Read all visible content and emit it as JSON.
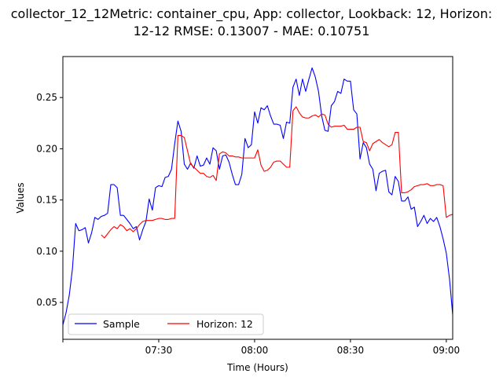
{
  "chart_data": {
    "type": "line",
    "title_line1": "collector_12_12Metric: container_cpu, App: collector, Lookback: 12, Horizon:",
    "title_line2": "12-12 RMSE: 0.13007 - MAE: 0.10751",
    "xlabel": "Time (Hours)",
    "ylabel": "Values",
    "x_ticks": [
      "",
      "07:30",
      "08:00",
      "08:30",
      "09:00"
    ],
    "y_ticks": [
      "0.05",
      "0.10",
      "0.15",
      "0.20",
      "0.25"
    ],
    "x_range_minutes_from_0700": [
      0,
      122
    ],
    "ylim": [
      0.014,
      0.29
    ],
    "grid": false,
    "legend_position": "lower-left",
    "series": [
      {
        "name": "Sample",
        "color": "#0000ff",
        "x_minutes_from_0700": [
          0,
          1,
          2,
          3,
          4,
          5,
          6,
          7,
          8,
          9,
          10,
          11,
          12,
          13,
          14,
          15,
          16,
          17,
          18,
          19,
          20,
          21,
          22,
          23,
          24,
          25,
          26,
          27,
          28,
          29,
          30,
          31,
          32,
          33,
          34,
          35,
          36,
          37,
          38,
          39,
          40,
          41,
          42,
          43,
          44,
          45,
          46,
          47,
          48,
          49,
          50,
          51,
          52,
          53,
          54,
          55,
          56,
          57,
          58,
          59,
          60,
          61,
          62,
          63,
          64,
          65,
          66,
          67,
          68,
          69,
          70,
          71,
          72,
          73,
          74,
          75,
          76,
          77,
          78,
          79,
          80,
          81,
          82,
          83,
          84,
          85,
          86,
          87,
          88,
          89,
          90,
          91,
          92,
          93,
          94,
          95,
          96,
          97,
          98,
          99,
          100,
          101,
          102,
          103,
          104,
          105,
          106,
          107,
          108,
          109,
          110,
          111,
          112,
          113,
          114,
          115,
          116,
          117,
          118,
          119,
          120,
          121,
          122
        ],
        "values": [
          0.028,
          0.04,
          0.057,
          0.083,
          0.127,
          0.12,
          0.121,
          0.123,
          0.108,
          0.118,
          0.133,
          0.131,
          0.134,
          0.135,
          0.137,
          0.165,
          0.165,
          0.162,
          0.135,
          0.135,
          0.131,
          0.127,
          0.122,
          0.124,
          0.111,
          0.121,
          0.129,
          0.151,
          0.14,
          0.162,
          0.164,
          0.163,
          0.172,
          0.173,
          0.18,
          0.205,
          0.227,
          0.217,
          0.185,
          0.18,
          0.186,
          0.181,
          0.193,
          0.183,
          0.184,
          0.191,
          0.185,
          0.201,
          0.198,
          0.18,
          0.193,
          0.194,
          0.187,
          0.175,
          0.165,
          0.165,
          0.175,
          0.21,
          0.201,
          0.204,
          0.236,
          0.225,
          0.24,
          0.238,
          0.242,
          0.232,
          0.224,
          0.224,
          0.223,
          0.21,
          0.226,
          0.225,
          0.26,
          0.268,
          0.252,
          0.268,
          0.256,
          0.268,
          0.279,
          0.27,
          0.256,
          0.232,
          0.218,
          0.217,
          0.242,
          0.246,
          0.256,
          0.254,
          0.268,
          0.266,
          0.266,
          0.238,
          0.234,
          0.19,
          0.206,
          0.201,
          0.185,
          0.18,
          0.159,
          0.176,
          0.178,
          0.179,
          0.158,
          0.155,
          0.173,
          0.168,
          0.149,
          0.149,
          0.153,
          0.141,
          0.143,
          0.124,
          0.129,
          0.135,
          0.127,
          0.132,
          0.129,
          0.133,
          0.124,
          0.112,
          0.098,
          0.073,
          0.038
        ]
      },
      {
        "name": "Horizon: 12",
        "color": "#ff0000",
        "x_minutes_from_0700": [
          12,
          13,
          14,
          15,
          16,
          17,
          18,
          19,
          20,
          21,
          22,
          23,
          24,
          25,
          26,
          27,
          28,
          29,
          30,
          31,
          32,
          33,
          34,
          35,
          36,
          37,
          38,
          39,
          40,
          41,
          42,
          43,
          44,
          45,
          46,
          47,
          48,
          49,
          50,
          51,
          52,
          53,
          54,
          55,
          56,
          57,
          58,
          59,
          60,
          61,
          62,
          63,
          64,
          65,
          66,
          67,
          68,
          69,
          70,
          71,
          72,
          73,
          74,
          75,
          76,
          77,
          78,
          79,
          80,
          81,
          82,
          83,
          84,
          85,
          86,
          87,
          88,
          89,
          90,
          91,
          92,
          93,
          94,
          95,
          96,
          97,
          98,
          99,
          100,
          101,
          102,
          103,
          104,
          105,
          106,
          107,
          108,
          109,
          110,
          111,
          112,
          113,
          114,
          115,
          116,
          117,
          118,
          119,
          120,
          121,
          122
        ],
        "values": [
          0.116,
          0.113,
          0.117,
          0.121,
          0.124,
          0.122,
          0.126,
          0.124,
          0.12,
          0.122,
          0.119,
          0.122,
          0.126,
          0.129,
          0.13,
          0.13,
          0.13,
          0.131,
          0.132,
          0.132,
          0.131,
          0.131,
          0.132,
          0.132,
          0.213,
          0.213,
          0.211,
          0.198,
          0.185,
          0.182,
          0.179,
          0.176,
          0.176,
          0.173,
          0.172,
          0.174,
          0.169,
          0.195,
          0.197,
          0.196,
          0.193,
          0.193,
          0.192,
          0.192,
          0.191,
          0.191,
          0.191,
          0.191,
          0.191,
          0.199,
          0.184,
          0.178,
          0.179,
          0.182,
          0.187,
          0.188,
          0.188,
          0.185,
          0.182,
          0.182,
          0.237,
          0.241,
          0.235,
          0.231,
          0.23,
          0.23,
          0.232,
          0.233,
          0.231,
          0.234,
          0.233,
          0.224,
          0.221,
          0.222,
          0.222,
          0.222,
          0.223,
          0.219,
          0.219,
          0.219,
          0.221,
          0.221,
          0.207,
          0.206,
          0.198,
          0.205,
          0.207,
          0.209,
          0.206,
          0.204,
          0.202,
          0.204,
          0.216,
          0.216,
          0.157,
          0.157,
          0.158,
          0.16,
          0.163,
          0.164,
          0.165,
          0.165,
          0.166,
          0.164,
          0.164,
          0.165,
          0.165,
          0.164,
          0.133,
          0.135,
          0.136
        ]
      }
    ]
  }
}
